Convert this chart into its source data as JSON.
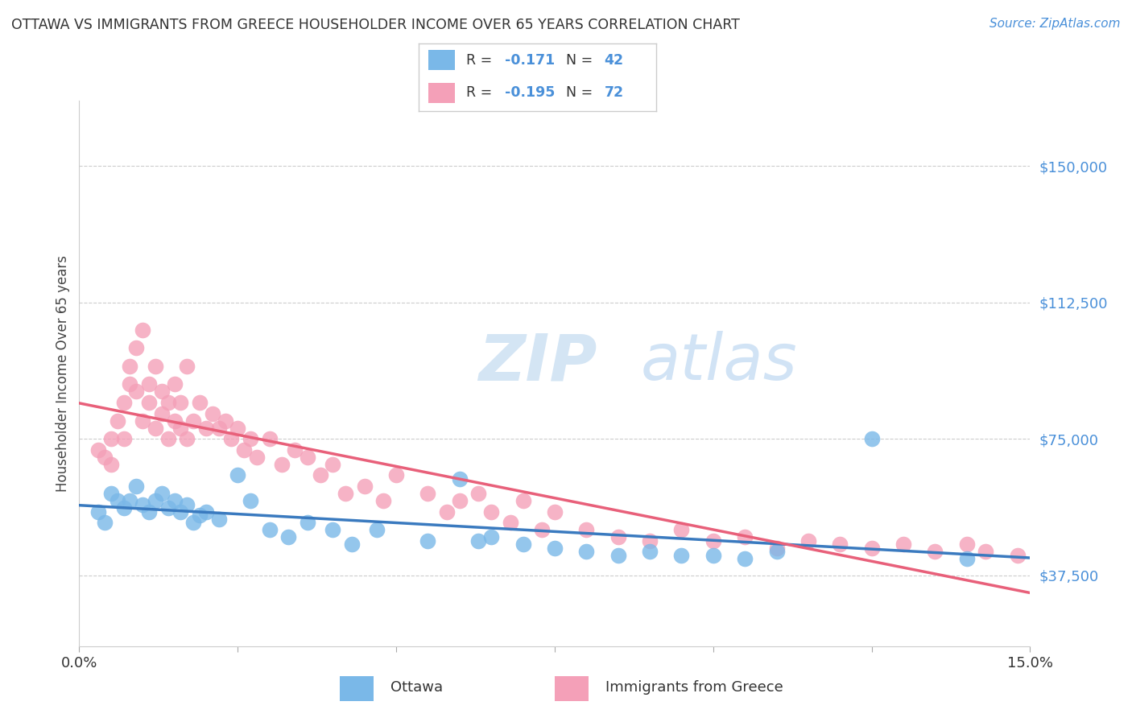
{
  "title": "OTTAWA VS IMMIGRANTS FROM GREECE HOUSEHOLDER INCOME OVER 65 YEARS CORRELATION CHART",
  "source": "Source: ZipAtlas.com",
  "ylabel": "Householder Income Over 65 years",
  "xmin": 0.0,
  "xmax": 0.15,
  "ymin": 18000,
  "ymax": 168000,
  "yticks": [
    37500,
    75000,
    112500,
    150000
  ],
  "ytick_labels": [
    "$37,500",
    "$75,000",
    "$112,500",
    "$150,000"
  ],
  "ottawa_color": "#7ab8e8",
  "greece_color": "#f4a0b8",
  "ottawa_line_color": "#3a7abf",
  "greece_line_color": "#e8607a",
  "ottawa_R": -0.171,
  "ottawa_N": 42,
  "greece_R": -0.195,
  "greece_N": 72,
  "watermark_zip": "ZIP",
  "watermark_atlas": "atlas",
  "background_color": "#ffffff",
  "ottawa_x": [
    0.003,
    0.004,
    0.005,
    0.006,
    0.007,
    0.008,
    0.009,
    0.01,
    0.011,
    0.012,
    0.013,
    0.014,
    0.015,
    0.016,
    0.017,
    0.018,
    0.019,
    0.02,
    0.022,
    0.025,
    0.027,
    0.03,
    0.033,
    0.036,
    0.04,
    0.043,
    0.047,
    0.055,
    0.06,
    0.063,
    0.065,
    0.07,
    0.075,
    0.08,
    0.085,
    0.09,
    0.095,
    0.1,
    0.105,
    0.11,
    0.125,
    0.14
  ],
  "ottawa_y": [
    55000,
    52000,
    60000,
    58000,
    56000,
    58000,
    62000,
    57000,
    55000,
    58000,
    60000,
    56000,
    58000,
    55000,
    57000,
    52000,
    54000,
    55000,
    53000,
    65000,
    58000,
    50000,
    48000,
    52000,
    50000,
    46000,
    50000,
    47000,
    64000,
    47000,
    48000,
    46000,
    45000,
    44000,
    43000,
    44000,
    43000,
    43000,
    42000,
    44000,
    75000,
    42000
  ],
  "greece_x": [
    0.003,
    0.004,
    0.005,
    0.005,
    0.006,
    0.007,
    0.007,
    0.008,
    0.008,
    0.009,
    0.009,
    0.01,
    0.01,
    0.011,
    0.011,
    0.012,
    0.012,
    0.013,
    0.013,
    0.014,
    0.014,
    0.015,
    0.015,
    0.016,
    0.016,
    0.017,
    0.017,
    0.018,
    0.019,
    0.02,
    0.021,
    0.022,
    0.023,
    0.024,
    0.025,
    0.026,
    0.027,
    0.028,
    0.03,
    0.032,
    0.034,
    0.036,
    0.038,
    0.04,
    0.042,
    0.045,
    0.048,
    0.05,
    0.055,
    0.058,
    0.06,
    0.063,
    0.065,
    0.068,
    0.07,
    0.073,
    0.075,
    0.08,
    0.085,
    0.09,
    0.095,
    0.1,
    0.105,
    0.11,
    0.115,
    0.12,
    0.125,
    0.13,
    0.135,
    0.14,
    0.143,
    0.148
  ],
  "greece_y": [
    72000,
    70000,
    75000,
    68000,
    80000,
    85000,
    75000,
    90000,
    95000,
    88000,
    100000,
    105000,
    80000,
    85000,
    90000,
    95000,
    78000,
    88000,
    82000,
    85000,
    75000,
    90000,
    80000,
    85000,
    78000,
    95000,
    75000,
    80000,
    85000,
    78000,
    82000,
    78000,
    80000,
    75000,
    78000,
    72000,
    75000,
    70000,
    75000,
    68000,
    72000,
    70000,
    65000,
    68000,
    60000,
    62000,
    58000,
    65000,
    60000,
    55000,
    58000,
    60000,
    55000,
    52000,
    58000,
    50000,
    55000,
    50000,
    48000,
    47000,
    50000,
    47000,
    48000,
    45000,
    47000,
    46000,
    45000,
    46000,
    44000,
    46000,
    44000,
    43000
  ]
}
